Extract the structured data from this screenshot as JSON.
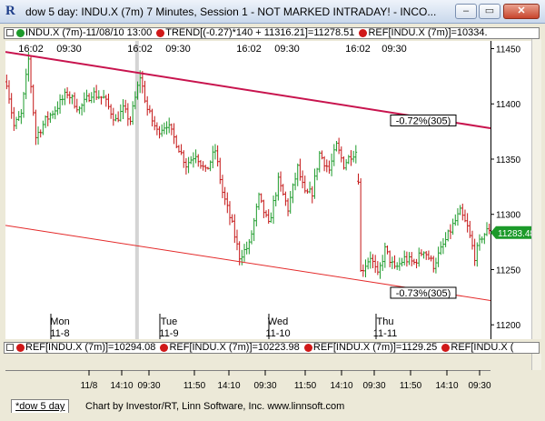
{
  "window": {
    "icon_letter": "R",
    "title": "dow 5 day: INDU.X (7m) 7 Minutes, Session 1 - NOT MARKED INTRADAY! - INCO...",
    "buttons": [
      "–",
      "▭",
      "✕"
    ]
  },
  "legend_top": {
    "items": [
      {
        "icon": "box-icon",
        "text": ""
      },
      {
        "icon": "green-dot-icon",
        "text": "INDU.X (7m)-11/08/10 13:00"
      },
      {
        "icon": "red-dot-icon",
        "text": "TREND[(-0.27)*140 + 11316.21]=11278.51"
      },
      {
        "icon": "red-dot-icon",
        "text": "REF[INDU.X (7m)]=10334."
      }
    ]
  },
  "legend_bottom": {
    "items": [
      {
        "icon": "red-dot-icon",
        "text": "REF[INDU.X (7m)]=10294.08"
      },
      {
        "icon": "red-dot-icon",
        "text": "REF[INDU.X (7m)]=10223.98"
      },
      {
        "icon": "red-dot-icon",
        "text": "REF[INDU.X (7m)]=1129.25"
      },
      {
        "icon": "red-dot-icon",
        "text": "REF[INDU.X ("
      }
    ]
  },
  "colors": {
    "up": "#1c9a2a",
    "down": "#c41515",
    "trend_upper": "#c8144e",
    "trend_lower": "#e42a2a",
    "session_band": "#d4d4d4"
  },
  "chart_data": {
    "type": "bar",
    "y_ticks": [
      11200,
      11250,
      11300,
      11350,
      11400,
      11450
    ],
    "ylim": [
      11187,
      11457
    ],
    "last_value_label": "11283.48",
    "last_value": 11283.48,
    "session_top_labels": [
      "16:02",
      "09:30",
      "16:02",
      "09:30",
      "16:02",
      "09:30",
      "16:02",
      "09:30"
    ],
    "day_labels": [
      {
        "day": "Mon",
        "date": "11-8"
      },
      {
        "day": "Tue",
        "date": "11-9"
      },
      {
        "day": "Wed",
        "date": "11-10"
      },
      {
        "day": "Thu",
        "date": "11-11"
      }
    ],
    "x_tick_labels": [
      "11/8",
      "14:10",
      "09:30",
      "11:50",
      "14:10",
      "09:30",
      "11:50",
      "14:10",
      "09:30",
      "11:50",
      "14:10",
      "09:30"
    ],
    "annotations": [
      {
        "text": "-0.72%(305)",
        "value": 11385
      },
      {
        "text": "-0.73%(305)",
        "value": 11229
      }
    ],
    "trend_upper": {
      "start": 11447,
      "end": 11378
    },
    "trend_lower": {
      "start": 11290,
      "end": 11222
    },
    "anchors": [
      [
        0,
        11420
      ],
      [
        3,
        11380
      ],
      [
        6,
        11390
      ],
      [
        9,
        11440
      ],
      [
        12,
        11370
      ],
      [
        16,
        11385
      ],
      [
        20,
        11395
      ],
      [
        25,
        11410
      ],
      [
        30,
        11395
      ],
      [
        35,
        11410
      ],
      [
        40,
        11405
      ],
      [
        45,
        11385
      ],
      [
        48,
        11395
      ],
      [
        51,
        11385
      ],
      [
        55,
        11425
      ],
      [
        58,
        11395
      ],
      [
        62,
        11375
      ],
      [
        66,
        11382
      ],
      [
        70,
        11365
      ],
      [
        74,
        11345
      ],
      [
        78,
        11355
      ],
      [
        82,
        11338
      ],
      [
        86,
        11358
      ],
      [
        89,
        11320
      ],
      [
        93,
        11290
      ],
      [
        96,
        11262
      ],
      [
        100,
        11272
      ],
      [
        104,
        11315
      ],
      [
        108,
        11290
      ],
      [
        112,
        11330
      ],
      [
        116,
        11305
      ],
      [
        120,
        11342
      ],
      [
        123,
        11318
      ],
      [
        126,
        11320
      ],
      [
        129,
        11355
      ],
      [
        133,
        11340
      ],
      [
        136,
        11362
      ],
      [
        139,
        11345
      ],
      [
        142,
        11354
      ],
      [
        144,
        11357
      ],
      [
        145,
        11333
      ],
      [
        146,
        11248
      ],
      [
        150,
        11262
      ],
      [
        153,
        11244
      ],
      [
        156,
        11268
      ],
      [
        160,
        11250
      ],
      [
        164,
        11260
      ],
      [
        168,
        11256
      ],
      [
        172,
        11268
      ],
      [
        176,
        11254
      ],
      [
        180,
        11272
      ],
      [
        184,
        11290
      ],
      [
        187,
        11302
      ],
      [
        190,
        11288
      ],
      [
        193,
        11262
      ],
      [
        196,
        11280
      ],
      [
        199,
        11287
      ]
    ]
  },
  "footer": {
    "tab_label": "*dow 5 day",
    "credit": "Chart by Investor/RT, Linn Software, Inc. www.linnsoft.com"
  }
}
